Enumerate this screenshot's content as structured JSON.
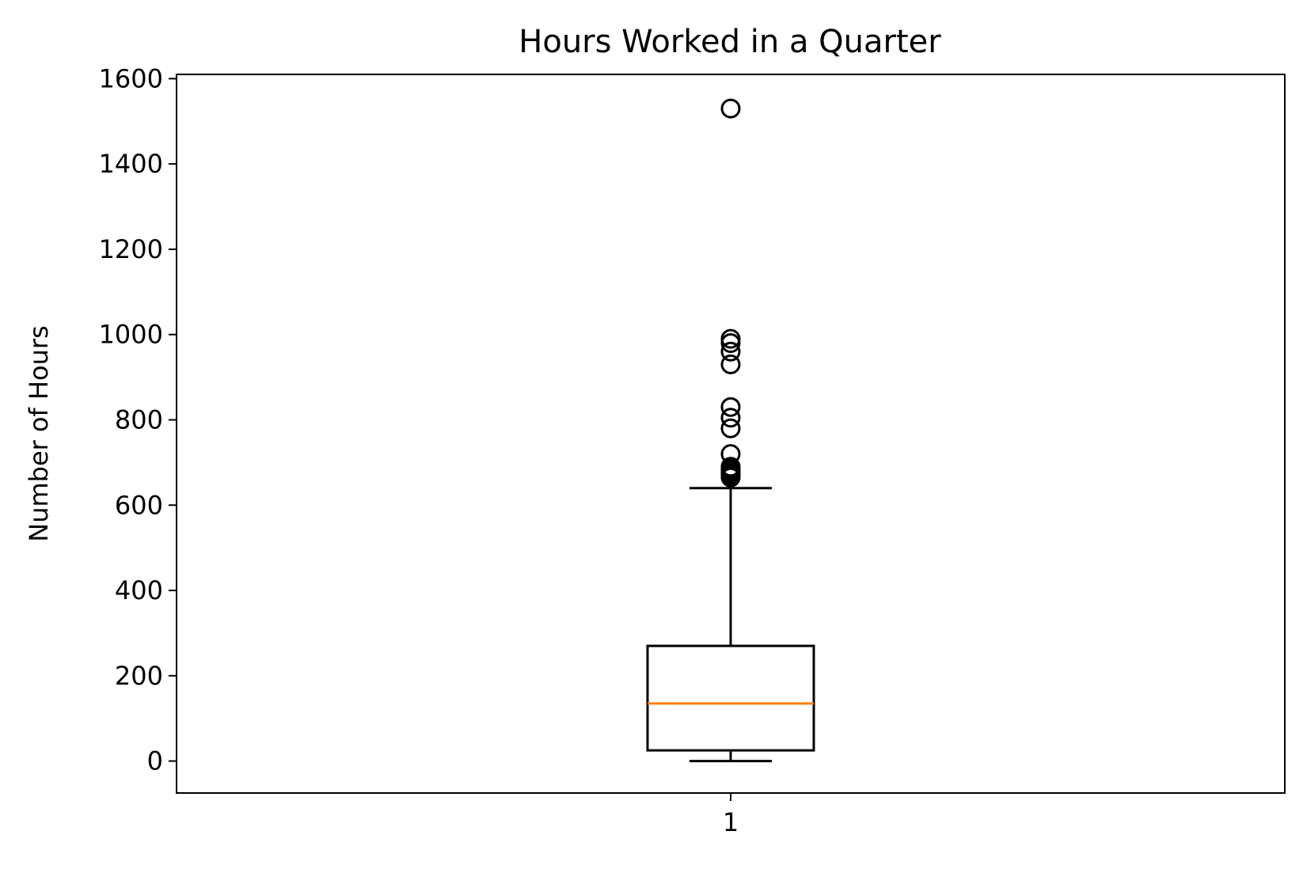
{
  "chart_data": {
    "type": "box",
    "title": "Hours Worked in a Quarter",
    "xlabel": "",
    "ylabel": "Number of Hours",
    "ylim": [
      -75,
      1610
    ],
    "yticks": [
      0,
      200,
      400,
      600,
      800,
      1000,
      1200,
      1400,
      1600
    ],
    "xticks": [
      "1"
    ],
    "grid": false,
    "boxes": [
      {
        "position": 1,
        "label": "1",
        "whisker_low": 0,
        "q1": 25,
        "median": 135,
        "q3": 270,
        "whisker_high": 640,
        "outliers": [
          665,
          670,
          675,
          680,
          685,
          690,
          720,
          780,
          805,
          830,
          930,
          960,
          980,
          990,
          1530
        ]
      }
    ],
    "colors": {
      "box": "#000000",
      "median": "#ff7f0e",
      "flier": "#000000"
    }
  }
}
